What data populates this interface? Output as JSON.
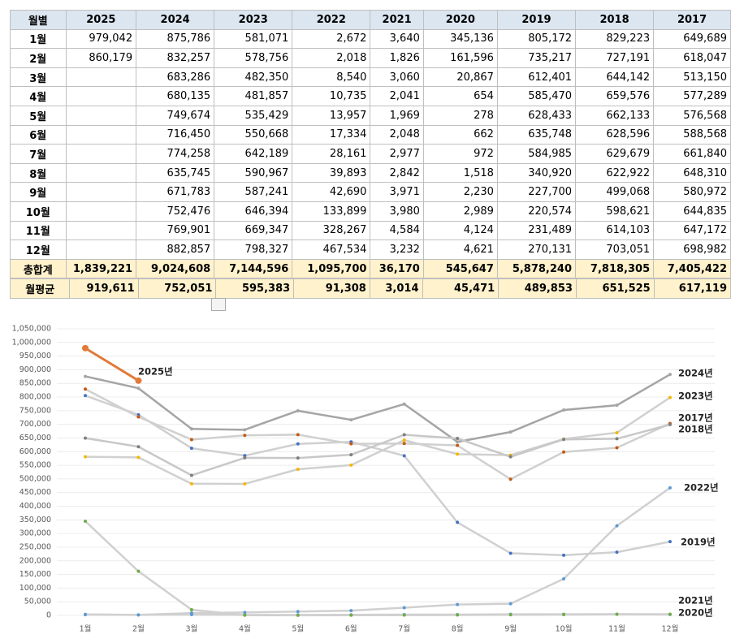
{
  "table": {
    "header": [
      "월별",
      "2025",
      "2024",
      "2023",
      "2022",
      "2021",
      "2020",
      "2019",
      "2018",
      "2017"
    ],
    "rows": [
      [
        "1월",
        "979,042",
        "875,786",
        "581,071",
        "2,672",
        "3,640",
        "345,136",
        "805,172",
        "829,223",
        "649,689"
      ],
      [
        "2월",
        "860,179",
        "832,257",
        "578,756",
        "2,018",
        "1,826",
        "161,596",
        "735,217",
        "727,191",
        "618,047"
      ],
      [
        "3월",
        null,
        "683,286",
        "482,350",
        "8,540",
        "3,060",
        "20,867",
        "612,401",
        "644,142",
        "513,150"
      ],
      [
        "4월",
        null,
        "680,135",
        "481,857",
        "10,735",
        "2,041",
        "654",
        "585,470",
        "659,576",
        "577,289"
      ],
      [
        "5월",
        null,
        "749,674",
        "535,429",
        "13,957",
        "1,969",
        "278",
        "628,433",
        "662,133",
        "576,568"
      ],
      [
        "6월",
        null,
        "716,450",
        "550,668",
        "17,334",
        "2,048",
        "662",
        "635,748",
        "628,596",
        "588,568"
      ],
      [
        "7월",
        null,
        "774,258",
        "642,189",
        "28,161",
        "2,977",
        "972",
        "584,985",
        "629,679",
        "661,840"
      ],
      [
        "8월",
        null,
        "635,745",
        "590,967",
        "39,893",
        "2,842",
        "1,518",
        "340,920",
        "622,922",
        "648,310"
      ],
      [
        "9월",
        null,
        "671,783",
        "587,241",
        "42,690",
        "3,971",
        "2,230",
        "227,700",
        "499,068",
        "580,972"
      ],
      [
        "10월",
        null,
        "752,476",
        "646,394",
        "133,899",
        "3,980",
        "2,989",
        "220,574",
        "598,621",
        "644,835"
      ],
      [
        "11월",
        null,
        "769,901",
        "669,347",
        "328,267",
        "4,584",
        "4,124",
        "231,489",
        "614,103",
        "647,172"
      ],
      [
        "12월",
        null,
        "882,857",
        "798,327",
        "467,534",
        "3,232",
        "4,621",
        "270,131",
        "703,051",
        "698,982"
      ]
    ],
    "total": [
      "총합계",
      "1,839,221",
      "9,024,608",
      "7,144,596",
      "1,095,700",
      "36,170",
      "545,647",
      "5,878,240",
      "7,818,305",
      "7,405,422"
    ]
  },
  "average_table": {
    "row": [
      "월평균",
      "919,611",
      "752,051",
      "595,383",
      "91,308",
      "3,014",
      "45,471",
      "489,853",
      "651,525",
      "617,119"
    ]
  },
  "chart_data": {
    "type": "line",
    "categories": [
      "1월",
      "2월",
      "3월",
      "4월",
      "5월",
      "6월",
      "7월",
      "8월",
      "9월",
      "10월",
      "11월",
      "12월"
    ],
    "ylim": [
      0,
      1050000
    ],
    "yticks": [
      {
        "value": 0,
        "label": "0"
      },
      {
        "value": 50000,
        "label": "50,000"
      },
      {
        "value": 100000,
        "label": "100,000"
      },
      {
        "value": 150000,
        "label": "150,000"
      },
      {
        "value": 200000,
        "label": "200,000"
      },
      {
        "value": 250000,
        "label": "250,000"
      },
      {
        "value": 300000,
        "label": "300,000"
      },
      {
        "value": 350000,
        "label": "350,000"
      },
      {
        "value": 400000,
        "label": "400,000"
      },
      {
        "value": 450000,
        "label": "450,000"
      },
      {
        "value": 500000,
        "label": "500,000"
      },
      {
        "value": 550000,
        "label": "550,000"
      },
      {
        "value": 600000,
        "label": "600,000"
      },
      {
        "value": 650000,
        "label": "650,000"
      },
      {
        "value": 700000,
        "label": "700,000"
      },
      {
        "value": 750000,
        "label": "750,000"
      },
      {
        "value": 800000,
        "label": "800,000"
      },
      {
        "value": 850000,
        "label": "850,000"
      },
      {
        "value": 900000,
        "label": "900,000"
      },
      {
        "value": 950000,
        "label": "950,000"
      },
      {
        "value": 1000000,
        "label": "1,000,000"
      },
      {
        "value": 1050000,
        "label": "1,050,000"
      }
    ],
    "grid": true,
    "series": [
      {
        "name": "2025년",
        "color": "#e07b39",
        "marker_color": "#e07b39",
        "values": [
          979042,
          860179,
          null,
          null,
          null,
          null,
          null,
          null,
          null,
          null,
          null,
          null
        ]
      },
      {
        "name": "2024년",
        "color": "#a5a5a5",
        "marker_color": "#a5a5a5",
        "values": [
          875786,
          832257,
          683286,
          680135,
          749674,
          716450,
          774258,
          635745,
          671783,
          752476,
          769901,
          882857
        ]
      },
      {
        "name": "2023년",
        "color": "#d0d0d0",
        "marker_color": "#f5b800",
        "values": [
          581071,
          578756,
          482350,
          481857,
          535429,
          550668,
          642189,
          590967,
          587241,
          646394,
          669347,
          798327
        ]
      },
      {
        "name": "2022년",
        "color": "#d0d0d0",
        "marker_color": "#5b9bd5",
        "values": [
          2672,
          2018,
          8540,
          10735,
          13957,
          17334,
          28161,
          39893,
          42690,
          133899,
          328267,
          467534
        ]
      },
      {
        "name": "2021년",
        "color": "#d0d0d0",
        "marker_color": "#5b9bd5",
        "values": [
          3640,
          1826,
          3060,
          2041,
          1969,
          2048,
          2977,
          2842,
          3971,
          3980,
          4584,
          3232
        ]
      },
      {
        "name": "2020년",
        "color": "#d0d0d0",
        "marker_color": "#70ad47",
        "values": [
          345136,
          161596,
          20867,
          654,
          278,
          662,
          972,
          1518,
          2230,
          2989,
          4124,
          4621
        ]
      },
      {
        "name": "2019년",
        "color": "#d0d0d0",
        "marker_color": "#4472c4",
        "values": [
          805172,
          735217,
          612401,
          585470,
          628433,
          635748,
          584985,
          340920,
          227700,
          220574,
          231489,
          270131
        ]
      },
      {
        "name": "2018년",
        "color": "#d0d0d0",
        "marker_color": "#c55a11",
        "values": [
          829223,
          727191,
          644142,
          659576,
          662133,
          628596,
          629679,
          622922,
          499068,
          598621,
          614103,
          703051
        ]
      },
      {
        "name": "2017년",
        "color": "#c8c8c8",
        "marker_color": "#7f7f7f",
        "values": [
          649689,
          618047,
          513150,
          577289,
          576568,
          588568,
          661840,
          648310,
          580972,
          644835,
          647172,
          698982
        ]
      }
    ]
  }
}
